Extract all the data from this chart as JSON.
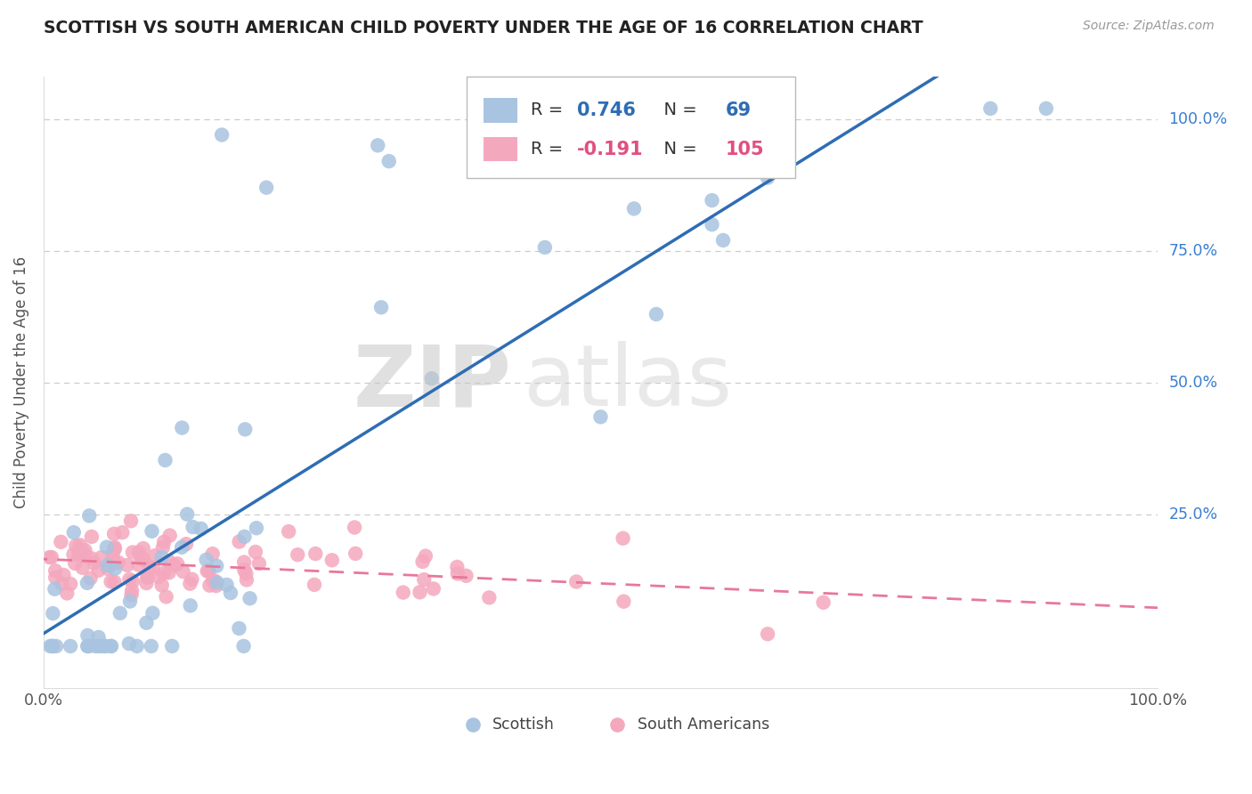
{
  "title": "SCOTTISH VS SOUTH AMERICAN CHILD POVERTY UNDER THE AGE OF 16 CORRELATION CHART",
  "source": "Source: ZipAtlas.com",
  "ylabel": "Child Poverty Under the Age of 16",
  "xlim": [
    0,
    1
  ],
  "ylim": [
    -0.08,
    1.08
  ],
  "xticks": [
    0.0,
    0.25,
    0.5,
    0.75,
    1.0
  ],
  "yticks": [
    0.0,
    0.25,
    0.5,
    0.75,
    1.0
  ],
  "xticklabels": [
    "0.0%",
    "",
    "",
    "",
    "100.0%"
  ],
  "yticklabels": [
    "",
    "25.0%",
    "50.0%",
    "75.0%",
    "100.0%"
  ],
  "scottish_color": "#a8c4e0",
  "south_american_color": "#f4a8be",
  "scottish_line_color": "#2e6db4",
  "south_american_line_color": "#e8789a",
  "scottish_R": 0.746,
  "scottish_N": 69,
  "south_american_R": -0.191,
  "south_american_N": 105,
  "watermark_zip": "ZIP",
  "watermark_atlas": "atlas",
  "watermark_color": "#d8d8d8",
  "background_color": "#ffffff",
  "grid_color": "#cccccc",
  "title_fontsize": 13.5,
  "legend_label_scottish": "Scottish",
  "legend_label_south_american": "South Americans",
  "legend_R_color_blue": "#2e6db4",
  "legend_N_color_blue": "#2e6db4",
  "legend_R_color_pink": "#e05080",
  "legend_N_color_pink": "#e05080"
}
